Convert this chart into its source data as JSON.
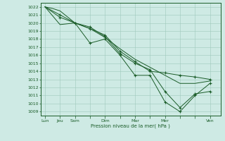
{
  "background_color": "#ceeae4",
  "grid_color": "#9ec8bc",
  "line_color": "#1a5c28",
  "xlabel": "Pression niveau de la mer( hPa )",
  "ylim": [
    1008.5,
    1022.5
  ],
  "yticks": [
    1009,
    1010,
    1011,
    1012,
    1013,
    1014,
    1015,
    1016,
    1017,
    1018,
    1019,
    1020,
    1021,
    1022
  ],
  "xtick_labels": [
    "Lun",
    "Jeu",
    "Sam",
    "",
    "Dim",
    "",
    "Mar",
    "",
    "Mer",
    "",
    "",
    "Ven"
  ],
  "xlim": [
    -0.3,
    11.7
  ],
  "series": [
    {
      "x": [
        0,
        0.5,
        1,
        2,
        3,
        4,
        5,
        6,
        7,
        8,
        9,
        10,
        11
      ],
      "y": [
        1022,
        1021.8,
        1021.5,
        1020.0,
        1019.3,
        1018.2,
        1016.8,
        1015.5,
        1014.5,
        1013.5,
        1012.5,
        1012.5,
        1012.8
      ],
      "has_markers": false
    },
    {
      "x": [
        0,
        1,
        2,
        3,
        4,
        5,
        6,
        7,
        8,
        9,
        10,
        11
      ],
      "y": [
        1022,
        1020.7,
        1020.0,
        1019.3,
        1018.5,
        1016.5,
        1015.2,
        1014.0,
        1013.8,
        1013.5,
        1013.3,
        1013.0
      ],
      "has_markers": true,
      "marker_x": [
        1,
        2,
        3,
        4,
        5,
        6,
        7,
        8,
        9,
        10,
        11
      ],
      "marker_y": [
        1020.7,
        1020.0,
        1019.3,
        1018.5,
        1016.5,
        1015.2,
        1014.0,
        1013.8,
        1013.5,
        1013.3,
        1013.0
      ]
    },
    {
      "x": [
        0,
        1,
        2,
        3,
        4,
        5,
        6,
        7,
        8,
        9,
        10,
        11
      ],
      "y": [
        1022,
        1019.8,
        1020.0,
        1019.5,
        1018.3,
        1016.2,
        1015.0,
        1014.2,
        1011.5,
        1009.5,
        1011.2,
        1011.5
      ],
      "has_markers": true,
      "marker_x": [
        3,
        4,
        5,
        6,
        7,
        8,
        9,
        10,
        11
      ],
      "marker_y": [
        1019.5,
        1018.3,
        1016.2,
        1015.0,
        1014.2,
        1011.5,
        1009.5,
        1011.2,
        1011.5
      ]
    },
    {
      "x": [
        0,
        1,
        2,
        3,
        4,
        5,
        6,
        7,
        8,
        9,
        10,
        11
      ],
      "y": [
        1022,
        1021.0,
        1020.0,
        1017.5,
        1018.0,
        1016.0,
        1013.5,
        1013.5,
        1010.2,
        1009.0,
        1011.0,
        1012.5
      ],
      "has_markers": true,
      "marker_x": [
        1,
        2,
        3,
        4,
        5,
        6,
        7,
        8,
        9,
        10,
        11
      ],
      "marker_y": [
        1021.0,
        1020.0,
        1017.5,
        1018.0,
        1016.0,
        1013.5,
        1013.5,
        1010.2,
        1009.0,
        1011.0,
        1012.5
      ]
    }
  ]
}
